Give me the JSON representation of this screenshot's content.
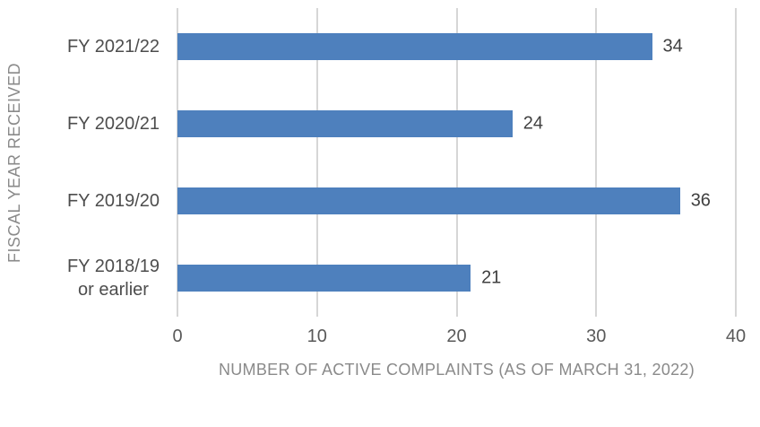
{
  "chart_data": {
    "type": "bar",
    "orientation": "horizontal",
    "categories": [
      "FY 2021/22",
      "FY 2020/21",
      "FY 2019/20",
      "FY 2018/19\nor earlier"
    ],
    "values": [
      34,
      24,
      36,
      21
    ],
    "data_labels": [
      "34",
      "24",
      "36",
      "21"
    ],
    "title": "",
    "xlabel": "NUMBER OF ACTIVE COMPLAINTS (AS OF MARCH 31, 2022)",
    "ylabel": "FISCAL YEAR RECEIVED",
    "xlim": [
      0,
      40
    ],
    "xticks": [
      0,
      10,
      20,
      30,
      40
    ],
    "grid": true,
    "legend": false,
    "bar_color": "#4E80BD",
    "gridline_color": "#D6D6D6",
    "category_label_color": "#4D4D4D",
    "value_label_color": "#404040",
    "tick_label_color": "#595959",
    "axis_title_color": "#8A8A8A",
    "background_color": "#FFFFFF"
  }
}
